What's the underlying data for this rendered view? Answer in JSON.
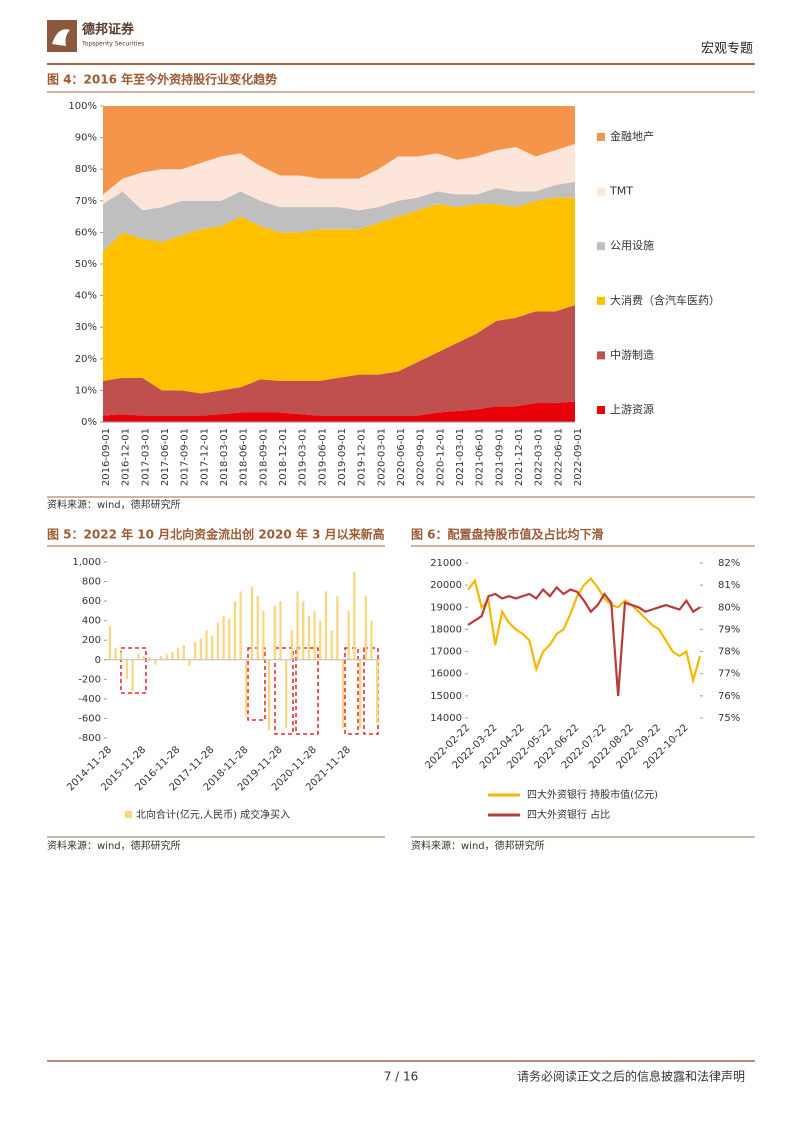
{
  "header": {
    "brand": "德邦证券",
    "brand_en": "Topsperity Securities",
    "section": "宏观专题"
  },
  "footer": {
    "page": "7 / 16",
    "disclaimer": "请务必阅读正文之后的信息披露和法律声明"
  },
  "chart_data": [
    {
      "type": "area",
      "stacked": true,
      "title": "图 4：2016 年至今外资持股行业变化趋势",
      "source": "资料来源：wind，德邦研究所",
      "categories": [
        "2016-09-01",
        "2016-12-01",
        "2017-03-01",
        "2017-06-01",
        "2017-09-01",
        "2017-12-01",
        "2018-03-01",
        "2018-06-01",
        "2018-09-01",
        "2018-12-01",
        "2019-03-01",
        "2019-06-01",
        "2019-09-01",
        "2019-12-01",
        "2020-03-01",
        "2020-06-01",
        "2020-09-01",
        "2020-12-01",
        "2021-03-01",
        "2021-06-01",
        "2021-09-01",
        "2021-12-01",
        "2022-03-01",
        "2022-06-01",
        "2022-09-01"
      ],
      "series": [
        {
          "name": "上游资源",
          "color": "#e8000b",
          "values": [
            2,
            2.5,
            2,
            2,
            2,
            2,
            2.5,
            3,
            3,
            3,
            2.5,
            2,
            2,
            2,
            2,
            2,
            2,
            3,
            3.5,
            4,
            5,
            5,
            6,
            6,
            6.5
          ]
        },
        {
          "name": "中游制造",
          "color": "#c0504d",
          "values": [
            11,
            11.5,
            12,
            8,
            8,
            7,
            7.5,
            8,
            10.5,
            10,
            10.5,
            11,
            12,
            13,
            13,
            14,
            17,
            19,
            21.5,
            24,
            27,
            28,
            29,
            29,
            30.5
          ]
        },
        {
          "name": "大消费（含汽车医药）",
          "color": "#ffc000",
          "values": [
            41,
            46,
            44,
            47,
            49,
            52,
            52,
            54,
            48.5,
            47,
            47,
            48,
            47,
            46,
            48,
            49,
            48,
            47,
            43,
            41,
            37,
            35,
            35,
            36,
            34
          ]
        },
        {
          "name": "公用设施",
          "color": "#bfbfbf",
          "values": [
            15,
            13,
            9,
            11,
            11,
            9,
            8,
            8,
            8,
            8,
            8,
            7,
            7,
            6,
            5,
            5,
            4,
            4,
            4,
            3,
            5,
            5,
            3,
            4,
            5
          ]
        },
        {
          "name": "TMT",
          "color": "#fde6d9",
          "values": [
            3,
            4,
            12,
            12,
            10,
            12,
            14,
            12,
            11,
            10,
            10,
            9,
            9,
            10,
            12,
            14,
            13,
            12,
            11,
            12,
            12,
            14,
            11,
            11,
            12
          ]
        },
        {
          "name": "金融地产",
          "color": "#f4954b",
          "values": [
            28,
            23,
            21,
            20,
            20,
            18,
            16,
            15,
            19,
            22,
            22,
            23,
            23,
            23,
            20,
            16,
            16,
            15,
            17,
            16,
            14,
            13,
            16,
            14,
            12
          ]
        }
      ],
      "ylim": [
        0,
        100
      ],
      "yticks": [
        {
          "value": 0,
          "label": "0%"
        },
        {
          "value": 10,
          "label": "10%"
        },
        {
          "value": 20,
          "label": "20%"
        },
        {
          "value": 30,
          "label": "30%"
        },
        {
          "value": 40,
          "label": "40%"
        },
        {
          "value": 50,
          "label": "50%"
        },
        {
          "value": 60,
          "label": "60%"
        },
        {
          "value": 70,
          "label": "70%"
        },
        {
          "value": 80,
          "label": "80%"
        },
        {
          "value": 90,
          "label": "90%"
        },
        {
          "value": 100,
          "label": "100%"
        }
      ],
      "grid": false,
      "legend": "right"
    },
    {
      "type": "bar",
      "title": "图 5：2022 年 10 月北向资金流出创 2020 年 3 月以来新高",
      "source": "资料来源：wind，德邦研究所",
      "categories": [
        "2014-11-28",
        null,
        null,
        null,
        null,
        null,
        "2015-11-28",
        null,
        null,
        null,
        null,
        null,
        "2016-11-28",
        null,
        null,
        null,
        null,
        null,
        "2017-11-28",
        null,
        null,
        null,
        null,
        null,
        "2018-11-28",
        null,
        null,
        null,
        null,
        null,
        "2019-11-28",
        null,
        null,
        null,
        null,
        null,
        "2020-11-28",
        null,
        null,
        null,
        null,
        null,
        "2021-11-28",
        null,
        null,
        null,
        null,
        null
      ],
      "series": [
        {
          "name": "北向合计(亿元,人民币) 成交净买入",
          "color": "#f8d77e",
          "values": [
            350,
            120,
            80,
            -200,
            -320,
            60,
            40,
            30,
            -50,
            40,
            60,
            80,
            120,
            150,
            -60,
            180,
            220,
            300,
            250,
            380,
            450,
            420,
            600,
            700,
            -580,
            750,
            650,
            500,
            -720,
            550,
            600,
            -700,
            300,
            700,
            600,
            450,
            500,
            400,
            700,
            300,
            650,
            -700,
            500,
            900,
            -700,
            650,
            400,
            -650
          ]
        }
      ],
      "ylim": [
        -800,
        1000
      ],
      "yticks": [
        -800,
        -600,
        -400,
        -200,
        0,
        200,
        400,
        600,
        800,
        {
          "value": 1000,
          "label": "1,000"
        }
      ],
      "grid": false,
      "legend": "bottom"
    },
    {
      "type": "line",
      "title": "图 6：配置盘持股市值及占比均下滑",
      "source": "资料来源：wind，德邦研究所",
      "categories": [
        "2022-02-22",
        null,
        null,
        null,
        "2022-03-22",
        null,
        null,
        null,
        "2022-04-22",
        null,
        null,
        null,
        "2022-05-22",
        null,
        null,
        null,
        "2022-06-22",
        null,
        null,
        null,
        "2022-07-22",
        null,
        null,
        null,
        "2022-08-22",
        null,
        null,
        null,
        "2022-09-22",
        null,
        null,
        null,
        "2022-10-22",
        null,
        null
      ],
      "series": [
        {
          "name": "四大外资银行 持股市值(亿元)",
          "color": "#f5b800",
          "values": [
            19800,
            20200,
            19000,
            19300,
            17300,
            18800,
            18300,
            18000,
            17800,
            17500,
            16200,
            17000,
            17300,
            17800,
            18000,
            18700,
            19500,
            20000,
            20300,
            19900,
            19400,
            19100,
            19000,
            19300,
            19100,
            18800,
            18500,
            18200,
            18000,
            17500,
            17000,
            16800,
            17000,
            15700,
            16800
          ]
        },
        {
          "name": "四大外资银行 占比",
          "color": "#b83b3b",
          "axis": "y2",
          "values": [
            79.2,
            79.4,
            79.6,
            80.5,
            80.6,
            80.4,
            80.5,
            80.4,
            80.5,
            80.6,
            80.4,
            80.8,
            80.5,
            80.9,
            80.6,
            80.8,
            80.7,
            80.3,
            79.8,
            80.1,
            80.6,
            80.2,
            76.0,
            80.2,
            80.1,
            80.0,
            79.8,
            79.9,
            80.0,
            80.1,
            80.0,
            79.9,
            80.3,
            79.8,
            80.0
          ]
        }
      ],
      "ylim": [
        14000,
        21000
      ],
      "yticks": [
        14000,
        15000,
        16000,
        17000,
        18000,
        19000,
        20000,
        21000
      ],
      "y2lim": [
        75,
        82
      ],
      "y2ticks": [
        {
          "value": 75,
          "label": "75%"
        },
        {
          "value": 76,
          "label": "76%"
        },
        {
          "value": 77,
          "label": "77%"
        },
        {
          "value": 78,
          "label": "78%"
        },
        {
          "value": 79,
          "label": "79%"
        },
        {
          "value": 80,
          "label": "80%"
        },
        {
          "value": 81,
          "label": "81%"
        },
        {
          "value": 82,
          "label": "82%"
        }
      ],
      "grid": false,
      "legend": "bottom"
    }
  ]
}
